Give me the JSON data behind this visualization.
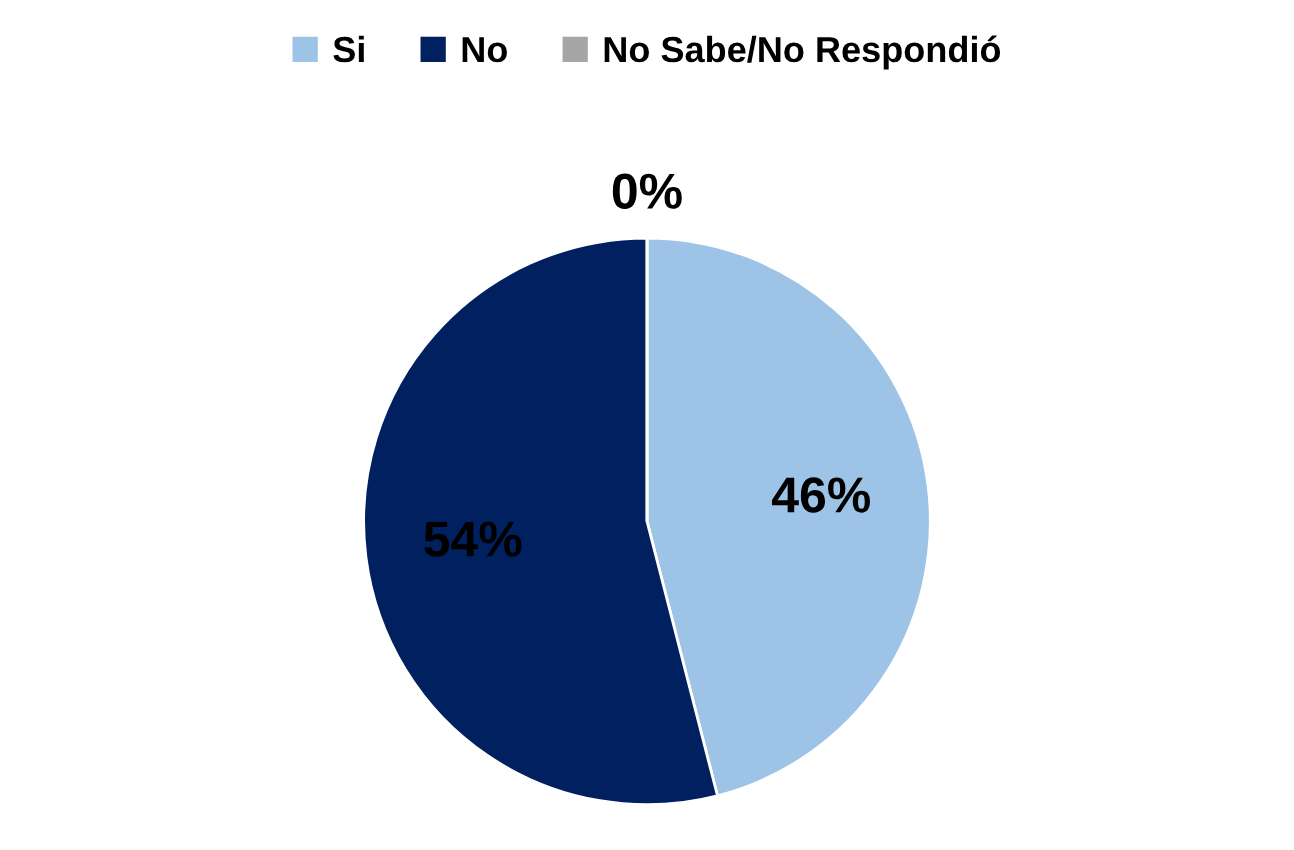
{
  "chart_data": {
    "type": "pie",
    "categories": [
      "Si",
      "No",
      "No Sabe/No Respondió"
    ],
    "values": [
      46,
      54,
      0
    ],
    "colors": [
      "#9dc3e6",
      "#002060",
      "#a6a6a6"
    ],
    "value_labels": [
      "46%",
      "54%",
      "0%"
    ],
    "legend": "top"
  }
}
